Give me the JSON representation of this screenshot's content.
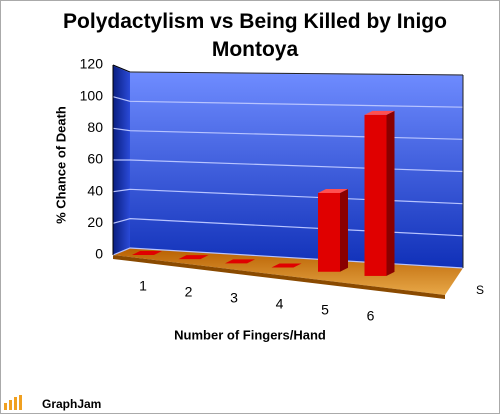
{
  "chart_data": {
    "type": "bar3d",
    "title": "Polydactylism vs Being Killed by Inigo Montoya",
    "y_label": "% Chance of Death",
    "x_label": "Number of Fingers/Hand",
    "categories": [
      "1",
      "2",
      "3",
      "4",
      "5",
      "6"
    ],
    "series": [
      {
        "name": "S",
        "color": "#e00000",
        "values": [
          0,
          0,
          0,
          0,
          45,
          92
        ]
      }
    ],
    "ylim": [
      0,
      120
    ],
    "yticks": [
      0,
      20,
      40,
      60,
      80,
      100,
      120
    ],
    "grid": true,
    "watermark": "GraphJam"
  }
}
